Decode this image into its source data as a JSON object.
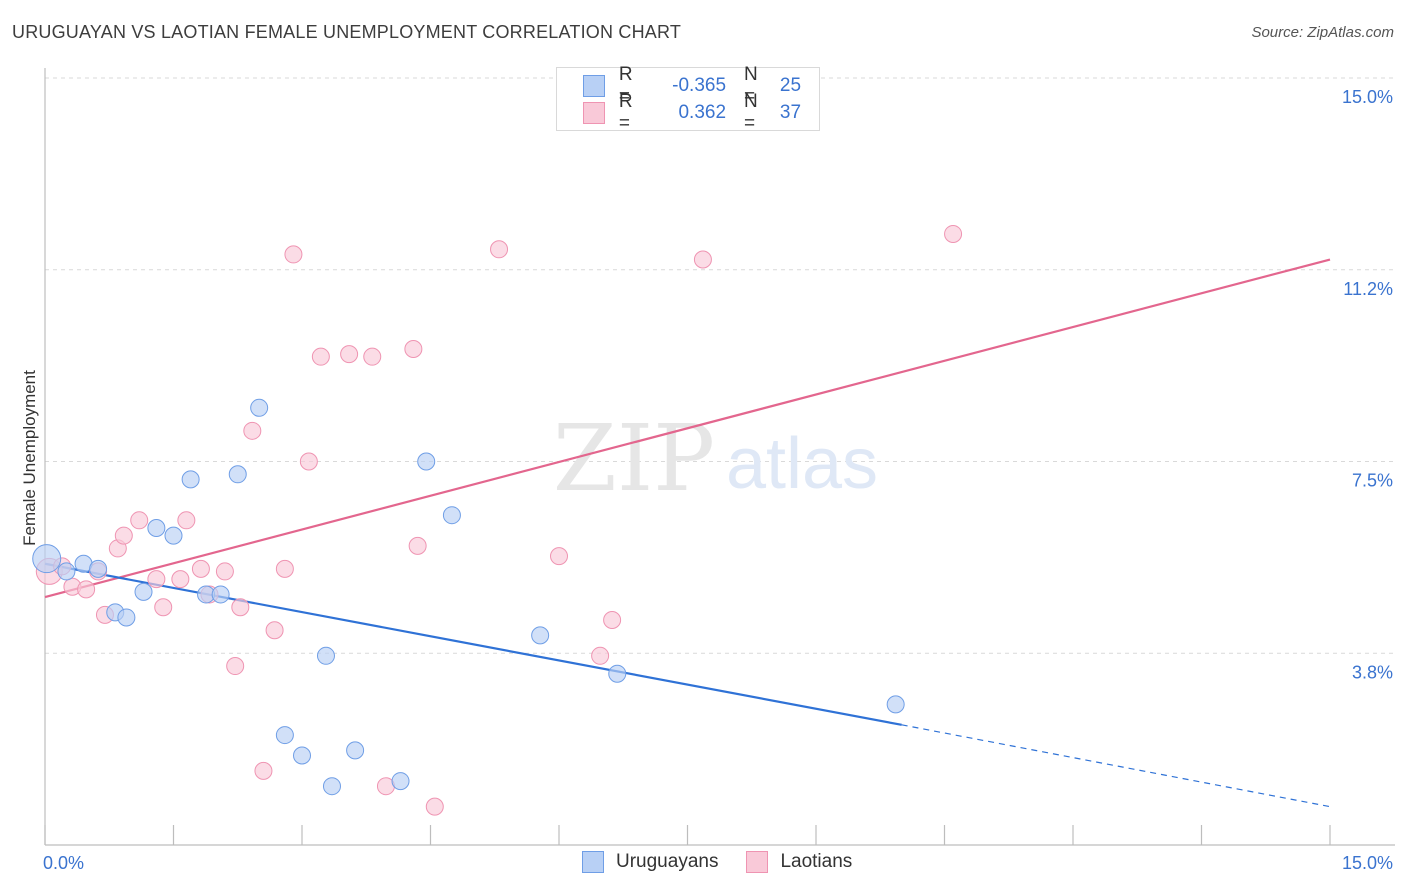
{
  "header": {
    "title": "URUGUAYAN VS LAOTIAN FEMALE UNEMPLOYMENT CORRELATION CHART",
    "source": "Source: ZipAtlas.com"
  },
  "watermark": {
    "zip": "ZIP",
    "atlas": "atlas"
  },
  "legend": {
    "rows": [
      {
        "r_label": "R =",
        "r_value": "-0.365",
        "n_label": "N =",
        "n_value": "25"
      },
      {
        "r_label": "R =",
        "r_value": "0.362",
        "n_label": "N =",
        "n_value": "37"
      }
    ]
  },
  "bottom_legend": [
    "Uruguayans",
    "Laotians"
  ],
  "colors": {
    "uruguayans_fill": "#b8d0f5",
    "uruguayans_stroke": "#6f9ee6",
    "uruguayans_line": "#2f72d6",
    "laotians_fill": "#f9c9d8",
    "laotians_stroke": "#ef94b2",
    "laotians_line": "#e3668e",
    "tick_label": "#3a73cf"
  },
  "chart_data": {
    "type": "scatter",
    "title": "URUGUAYAN VS LAOTIAN FEMALE UNEMPLOYMENT CORRELATION CHART",
    "xlabel": "",
    "ylabel": "Female Unemployment",
    "xlim": [
      0,
      15
    ],
    "ylim": [
      0,
      15
    ],
    "x_tick_labels": [
      {
        "value": 0,
        "label": "0.0%"
      },
      {
        "value": 15,
        "label": "15.0%"
      }
    ],
    "y_tick_labels": [
      {
        "value": 15,
        "label": "15.0%"
      },
      {
        "value": 11.25,
        "label": "11.2%"
      },
      {
        "value": 7.5,
        "label": "7.5%"
      },
      {
        "value": 3.8,
        "label": "3.8%"
      }
    ],
    "x_minor_ticks": [
      0,
      1.5,
      3.0,
      4.5,
      6.0,
      7.5,
      9.0,
      10.5,
      12.0,
      13.5,
      15.0
    ],
    "gridlines": [
      15,
      11.25,
      7.5,
      3.75
    ],
    "series": [
      {
        "name": "Uruguayans",
        "R": -0.365,
        "N": 25,
        "trend": {
          "x_start": 0,
          "y_start": 5.5,
          "x_end": 10.0,
          "y_end": 2.35,
          "x_dash_end": 15.0,
          "y_dash_end": 0.75
        },
        "points": [
          [
            0.02,
            5.6
          ],
          [
            0.25,
            5.35
          ],
          [
            0.45,
            5.5
          ],
          [
            0.62,
            5.4
          ],
          [
            0.82,
            4.55
          ],
          [
            0.95,
            4.45
          ],
          [
            1.15,
            4.95
          ],
          [
            1.3,
            6.2
          ],
          [
            1.5,
            6.05
          ],
          [
            1.7,
            7.15
          ],
          [
            1.88,
            4.9
          ],
          [
            2.05,
            4.9
          ],
          [
            2.25,
            7.25
          ],
          [
            2.5,
            8.55
          ],
          [
            2.8,
            2.15
          ],
          [
            3.0,
            1.75
          ],
          [
            3.28,
            3.7
          ],
          [
            3.35,
            1.15
          ],
          [
            3.62,
            1.85
          ],
          [
            4.15,
            1.25
          ],
          [
            4.45,
            7.5
          ],
          [
            4.75,
            6.45
          ],
          [
            5.78,
            4.1
          ],
          [
            6.68,
            3.35
          ],
          [
            9.93,
            2.75
          ]
        ]
      },
      {
        "name": "Laotians",
        "R": 0.362,
        "N": 37,
        "trend": {
          "x_start": 0,
          "y_start": 4.85,
          "x_end": 15.0,
          "y_end": 11.45
        },
        "points": [
          [
            0.05,
            5.35
          ],
          [
            0.2,
            5.45
          ],
          [
            0.32,
            5.05
          ],
          [
            0.48,
            5.0
          ],
          [
            0.62,
            5.35
          ],
          [
            0.7,
            4.5
          ],
          [
            0.85,
            5.8
          ],
          [
            0.92,
            6.05
          ],
          [
            1.1,
            6.35
          ],
          [
            1.3,
            5.2
          ],
          [
            1.38,
            4.65
          ],
          [
            1.58,
            5.2
          ],
          [
            1.65,
            6.35
          ],
          [
            1.82,
            5.4
          ],
          [
            1.92,
            4.9
          ],
          [
            2.1,
            5.35
          ],
          [
            2.22,
            3.5
          ],
          [
            2.28,
            4.65
          ],
          [
            2.42,
            8.1
          ],
          [
            2.55,
            1.45
          ],
          [
            2.68,
            4.2
          ],
          [
            2.8,
            5.4
          ],
          [
            2.9,
            11.55
          ],
          [
            3.08,
            7.5
          ],
          [
            3.22,
            9.55
          ],
          [
            3.55,
            9.6
          ],
          [
            3.82,
            9.55
          ],
          [
            3.98,
            1.15
          ],
          [
            4.3,
            9.7
          ],
          [
            4.35,
            5.85
          ],
          [
            4.55,
            0.75
          ],
          [
            5.3,
            11.65
          ],
          [
            6.0,
            5.65
          ],
          [
            6.48,
            3.7
          ],
          [
            6.62,
            4.4
          ],
          [
            7.68,
            11.45
          ],
          [
            10.6,
            11.95
          ]
        ]
      }
    ]
  }
}
